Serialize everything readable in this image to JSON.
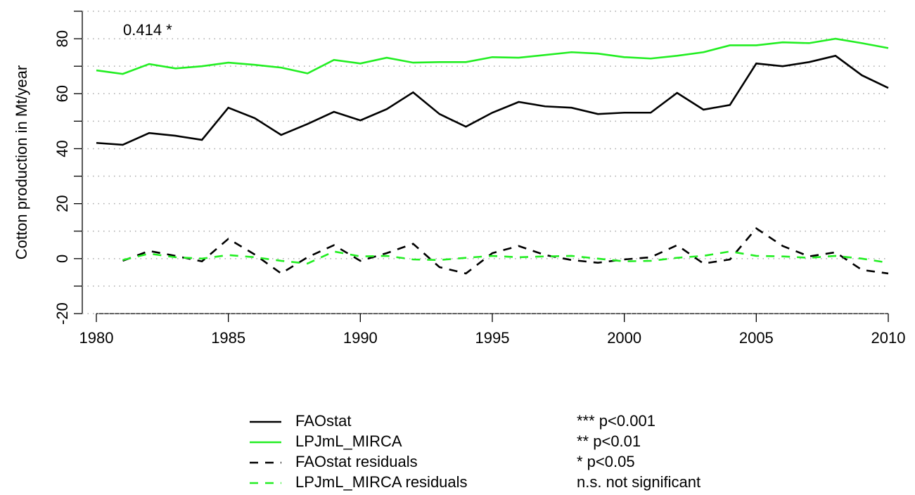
{
  "chart_data": {
    "type": "line",
    "ylabel": "Cotton production in Mt/year",
    "annotation": "0.414 *",
    "x": [
      1980,
      1981,
      1982,
      1983,
      1984,
      1985,
      1986,
      1987,
      1988,
      1989,
      1990,
      1991,
      1992,
      1993,
      1994,
      1995,
      1996,
      1997,
      1998,
      1999,
      2000,
      2001,
      2002,
      2003,
      2004,
      2005,
      2006,
      2007,
      2008,
      2009,
      2010
    ],
    "series": [
      {
        "name": "FAOstat",
        "color": "#000000",
        "dashed": false,
        "values": [
          42.1,
          41.4,
          45.7,
          44.7,
          43.2,
          54.9,
          51.1,
          45.0,
          49.0,
          53.4,
          50.3,
          54.4,
          60.5,
          52.6,
          48.0,
          53.1,
          57.0,
          55.4,
          54.9,
          52.6,
          53.1,
          53.1,
          60.3,
          54.2,
          55.9,
          71.0,
          70.0,
          71.5,
          73.8,
          66.7,
          62.1
        ]
      },
      {
        "name": "LPJmL_MIRCA",
        "color": "#22ee22",
        "dashed": false,
        "values": [
          68.5,
          67.2,
          70.8,
          69.2,
          70.0,
          71.3,
          70.5,
          69.5,
          67.4,
          72.3,
          71.0,
          73.1,
          71.3,
          71.5,
          71.5,
          73.3,
          73.1,
          74.1,
          75.1,
          74.6,
          73.3,
          72.8,
          73.8,
          75.1,
          77.6,
          77.6,
          78.7,
          78.4,
          80.0,
          78.4,
          76.6
        ]
      },
      {
        "name": "FAOstat residuals",
        "color": "#000000",
        "dashed": true,
        "values": [
          null,
          -0.8,
          2.8,
          1.0,
          -1.0,
          7.2,
          1.5,
          -5.4,
          0.5,
          4.9,
          -0.8,
          2.0,
          5.4,
          -3.1,
          -5.4,
          2.0,
          4.6,
          1.3,
          -0.5,
          -1.5,
          -0.3,
          0.5,
          4.9,
          -1.8,
          -0.3,
          11.0,
          4.6,
          0.8,
          2.3,
          -4.1,
          -5.4
        ]
      },
      {
        "name": "LPJmL_MIRCA residuals",
        "color": "#22ee22",
        "dashed": true,
        "values": [
          null,
          -0.5,
          1.8,
          0.5,
          0,
          1.3,
          0.5,
          -0.8,
          -1.8,
          2.6,
          0.8,
          1.0,
          -0.3,
          -0.5,
          0.3,
          1.0,
          0.5,
          0.8,
          1.0,
          0,
          -1.0,
          -0.8,
          0.3,
          1.0,
          2.6,
          1.0,
          0.8,
          0.3,
          1.0,
          0,
          -1.5
        ]
      }
    ],
    "significance_legend": [
      "*** p<0.001",
      "** p<0.01",
      "* p<0.05",
      "n.s. not significant"
    ],
    "xlim": [
      1980,
      2010
    ],
    "xticks": [
      1980,
      1985,
      1990,
      1995,
      2000,
      2005,
      2010
    ],
    "ylim": [
      -20,
      90
    ],
    "yticks": [
      -20,
      0,
      20,
      40,
      60,
      80
    ],
    "yminorticks": [
      -10,
      10,
      30,
      50,
      70,
      90
    ],
    "grid": true
  }
}
